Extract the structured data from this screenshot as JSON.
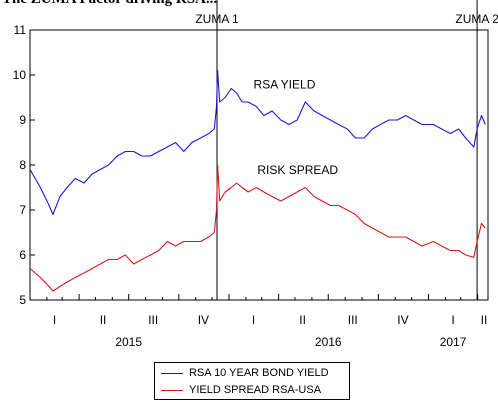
{
  "page": {
    "clipped_title": "The ZUMA Factor driving RSA..."
  },
  "chart_data": {
    "type": "line",
    "ylim": [
      5,
      11
    ],
    "yticks": [
      5,
      6,
      7,
      8,
      9,
      10,
      11
    ],
    "x_period": [
      "2015-01",
      "2017-03"
    ],
    "quarter_labels": [
      {
        "label": "I",
        "quarter": "2015-Q1"
      },
      {
        "label": "II",
        "quarter": "2015-Q2"
      },
      {
        "label": "III",
        "quarter": "2015-Q3"
      },
      {
        "label": "IV",
        "quarter": "2015-Q4"
      },
      {
        "label": "I",
        "quarter": "2016-Q1"
      },
      {
        "label": "II",
        "quarter": "2016-Q2"
      },
      {
        "label": "III",
        "quarter": "2016-Q3"
      },
      {
        "label": "IV",
        "quarter": "2016-Q4"
      },
      {
        "label": "I",
        "quarter": "2017-Q1"
      },
      {
        "label": "II",
        "quarter": "2017-Q2"
      }
    ],
    "year_labels": [
      {
        "label": "2015",
        "year": 2015
      },
      {
        "label": "2016",
        "year": 2016
      },
      {
        "label": "2017",
        "year": 2017
      }
    ],
    "events": [
      {
        "label": "ZUMA 1",
        "date": "2015-12-10"
      },
      {
        "label": "ZUMA 2",
        "date": "2017-03-31"
      }
    ],
    "annotations": [
      {
        "text": "RSA YIELD",
        "date": "2016-02-15",
        "value": 9.7
      },
      {
        "text": "RISK SPREAD",
        "date": "2016-02-22",
        "value": 7.8
      }
    ],
    "series": [
      {
        "name": "RSA 10 YEAR BOND YIELD",
        "color": "#1a1ad6",
        "points": [
          [
            "2015-01-01",
            7.9
          ],
          [
            "2015-01-20",
            7.5
          ],
          [
            "2015-02-05",
            7.1
          ],
          [
            "2015-02-12",
            6.9
          ],
          [
            "2015-02-25",
            7.3
          ],
          [
            "2015-03-10",
            7.5
          ],
          [
            "2015-03-25",
            7.7
          ],
          [
            "2015-04-10",
            7.6
          ],
          [
            "2015-04-25",
            7.8
          ],
          [
            "2015-05-10",
            7.9
          ],
          [
            "2015-05-25",
            8.0
          ],
          [
            "2015-06-10",
            8.2
          ],
          [
            "2015-06-25",
            8.3
          ],
          [
            "2015-07-10",
            8.3
          ],
          [
            "2015-07-25",
            8.2
          ],
          [
            "2015-08-10",
            8.2
          ],
          [
            "2015-08-25",
            8.3
          ],
          [
            "2015-09-10",
            8.4
          ],
          [
            "2015-09-25",
            8.5
          ],
          [
            "2015-10-10",
            8.3
          ],
          [
            "2015-10-25",
            8.5
          ],
          [
            "2015-11-10",
            8.6
          ],
          [
            "2015-11-25",
            8.7
          ],
          [
            "2015-12-05",
            8.8
          ],
          [
            "2015-12-09",
            9.3
          ],
          [
            "2015-12-11",
            10.1
          ],
          [
            "2015-12-15",
            9.4
          ],
          [
            "2015-12-25",
            9.5
          ],
          [
            "2016-01-05",
            9.7
          ],
          [
            "2016-01-15",
            9.6
          ],
          [
            "2016-01-25",
            9.4
          ],
          [
            "2016-02-05",
            9.4
          ],
          [
            "2016-02-20",
            9.3
          ],
          [
            "2016-03-05",
            9.1
          ],
          [
            "2016-03-20",
            9.2
          ],
          [
            "2016-04-05",
            9.0
          ],
          [
            "2016-04-20",
            8.9
          ],
          [
            "2016-05-05",
            9.0
          ],
          [
            "2016-05-20",
            9.4
          ],
          [
            "2016-06-05",
            9.2
          ],
          [
            "2016-06-20",
            9.1
          ],
          [
            "2016-07-05",
            9.0
          ],
          [
            "2016-07-20",
            8.9
          ],
          [
            "2016-08-05",
            8.8
          ],
          [
            "2016-08-20",
            8.6
          ],
          [
            "2016-09-05",
            8.6
          ],
          [
            "2016-09-20",
            8.8
          ],
          [
            "2016-10-05",
            8.9
          ],
          [
            "2016-10-20",
            9.0
          ],
          [
            "2016-11-05",
            9.0
          ],
          [
            "2016-11-20",
            9.1
          ],
          [
            "2016-12-05",
            9.0
          ],
          [
            "2016-12-20",
            8.9
          ],
          [
            "2017-01-10",
            8.9
          ],
          [
            "2017-01-25",
            8.8
          ],
          [
            "2017-02-10",
            8.7
          ],
          [
            "2017-02-25",
            8.8
          ],
          [
            "2017-03-10",
            8.6
          ],
          [
            "2017-03-25",
            8.4
          ],
          [
            "2017-03-31",
            8.8
          ],
          [
            "2017-04-08",
            9.1
          ],
          [
            "2017-04-15",
            8.9
          ]
        ]
      },
      {
        "name": "YIELD SPREAD RSA-USA",
        "color": "#d41a1a",
        "points": [
          [
            "2015-01-01",
            5.7
          ],
          [
            "2015-01-20",
            5.5
          ],
          [
            "2015-02-05",
            5.3
          ],
          [
            "2015-02-12",
            5.2
          ],
          [
            "2015-02-25",
            5.3
          ],
          [
            "2015-03-10",
            5.4
          ],
          [
            "2015-03-25",
            5.5
          ],
          [
            "2015-04-10",
            5.6
          ],
          [
            "2015-04-25",
            5.7
          ],
          [
            "2015-05-10",
            5.8
          ],
          [
            "2015-05-25",
            5.9
          ],
          [
            "2015-06-10",
            5.9
          ],
          [
            "2015-06-25",
            6.0
          ],
          [
            "2015-07-10",
            5.8
          ],
          [
            "2015-07-25",
            5.9
          ],
          [
            "2015-08-10",
            6.0
          ],
          [
            "2015-08-25",
            6.1
          ],
          [
            "2015-09-10",
            6.3
          ],
          [
            "2015-09-25",
            6.2
          ],
          [
            "2015-10-10",
            6.3
          ],
          [
            "2015-10-25",
            6.3
          ],
          [
            "2015-11-10",
            6.3
          ],
          [
            "2015-11-25",
            6.4
          ],
          [
            "2015-12-05",
            6.5
          ],
          [
            "2015-12-09",
            7.0
          ],
          [
            "2015-12-11",
            8.0
          ],
          [
            "2015-12-15",
            7.2
          ],
          [
            "2015-12-25",
            7.4
          ],
          [
            "2016-01-05",
            7.5
          ],
          [
            "2016-01-15",
            7.6
          ],
          [
            "2016-01-25",
            7.5
          ],
          [
            "2016-02-05",
            7.4
          ],
          [
            "2016-02-20",
            7.5
          ],
          [
            "2016-03-05",
            7.4
          ],
          [
            "2016-03-20",
            7.3
          ],
          [
            "2016-04-05",
            7.2
          ],
          [
            "2016-04-20",
            7.3
          ],
          [
            "2016-05-05",
            7.4
          ],
          [
            "2016-05-20",
            7.5
          ],
          [
            "2016-06-05",
            7.3
          ],
          [
            "2016-06-20",
            7.2
          ],
          [
            "2016-07-05",
            7.1
          ],
          [
            "2016-07-20",
            7.1
          ],
          [
            "2016-08-05",
            7.0
          ],
          [
            "2016-08-20",
            6.9
          ],
          [
            "2016-09-05",
            6.7
          ],
          [
            "2016-09-20",
            6.6
          ],
          [
            "2016-10-05",
            6.5
          ],
          [
            "2016-10-20",
            6.4
          ],
          [
            "2016-11-05",
            6.4
          ],
          [
            "2016-11-20",
            6.4
          ],
          [
            "2016-12-05",
            6.3
          ],
          [
            "2016-12-20",
            6.2
          ],
          [
            "2017-01-10",
            6.3
          ],
          [
            "2017-01-25",
            6.2
          ],
          [
            "2017-02-10",
            6.1
          ],
          [
            "2017-02-25",
            6.1
          ],
          [
            "2017-03-10",
            6.0
          ],
          [
            "2017-03-25",
            5.95
          ],
          [
            "2017-03-31",
            6.3
          ],
          [
            "2017-04-08",
            6.7
          ],
          [
            "2017-04-15",
            6.6
          ]
        ]
      }
    ]
  }
}
